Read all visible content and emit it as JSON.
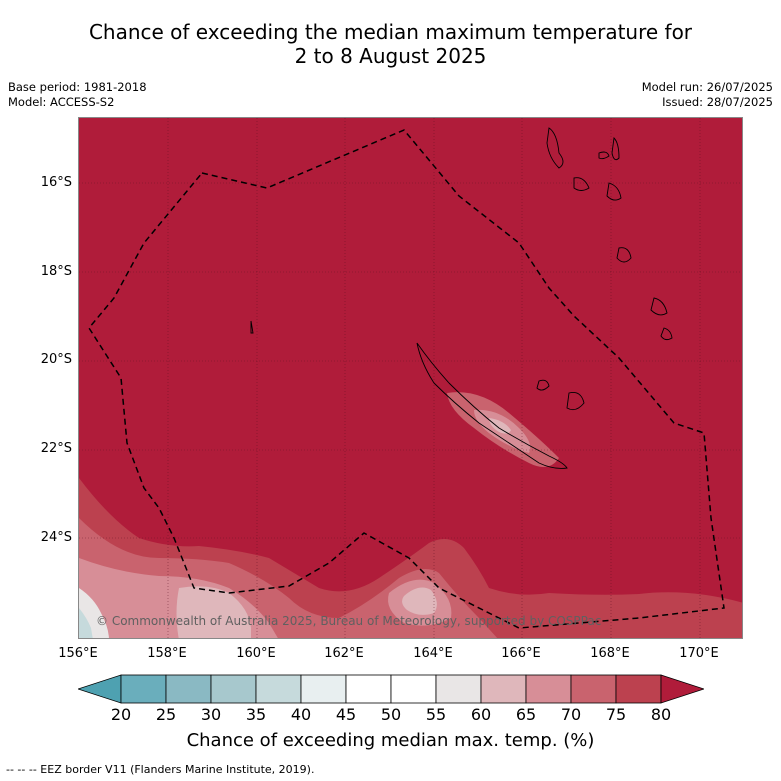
{
  "title_line1": "Chance of exceeding the median maximum temperature for",
  "title_line2": "2 to 8 August 2025",
  "base_period": "Base period: 1981-2018",
  "model": "Model: ACCESS-S2",
  "model_run": "Model run: 26/07/2025",
  "issued": "Issued: 28/07/2025",
  "lat_labels": [
    "16°S",
    "18°S",
    "20°S",
    "22°S",
    "24°S"
  ],
  "lon_labels": [
    "156°E",
    "158°E",
    "160°E",
    "162°E",
    "164°E",
    "166°E",
    "168°E",
    "170°E"
  ],
  "copyright": "© Commonwealth of Australia 2025, Bureau of Meteorology, supported by COSPPac",
  "colorbar": {
    "ticks": [
      "20",
      "25",
      "30",
      "35",
      "40",
      "45",
      "50",
      "55",
      "60",
      "65",
      "70",
      "75",
      "80"
    ],
    "colors": [
      "#4ea1b1",
      "#6aaebc",
      "#8ab9c3",
      "#a7c8cd",
      "#c6dadc",
      "#e8eff0",
      "#ffffff",
      "#ffffff",
      "#e9e6e6",
      "#dfb7bb",
      "#d78e97",
      "#c9636e",
      "#bc414f",
      "#b01c3a"
    ],
    "title": "Chance of exceeding median max. temp. (%)"
  },
  "footer": "-- -- -- EEZ border V11 (Flanders Marine Institute, 2019)."
}
